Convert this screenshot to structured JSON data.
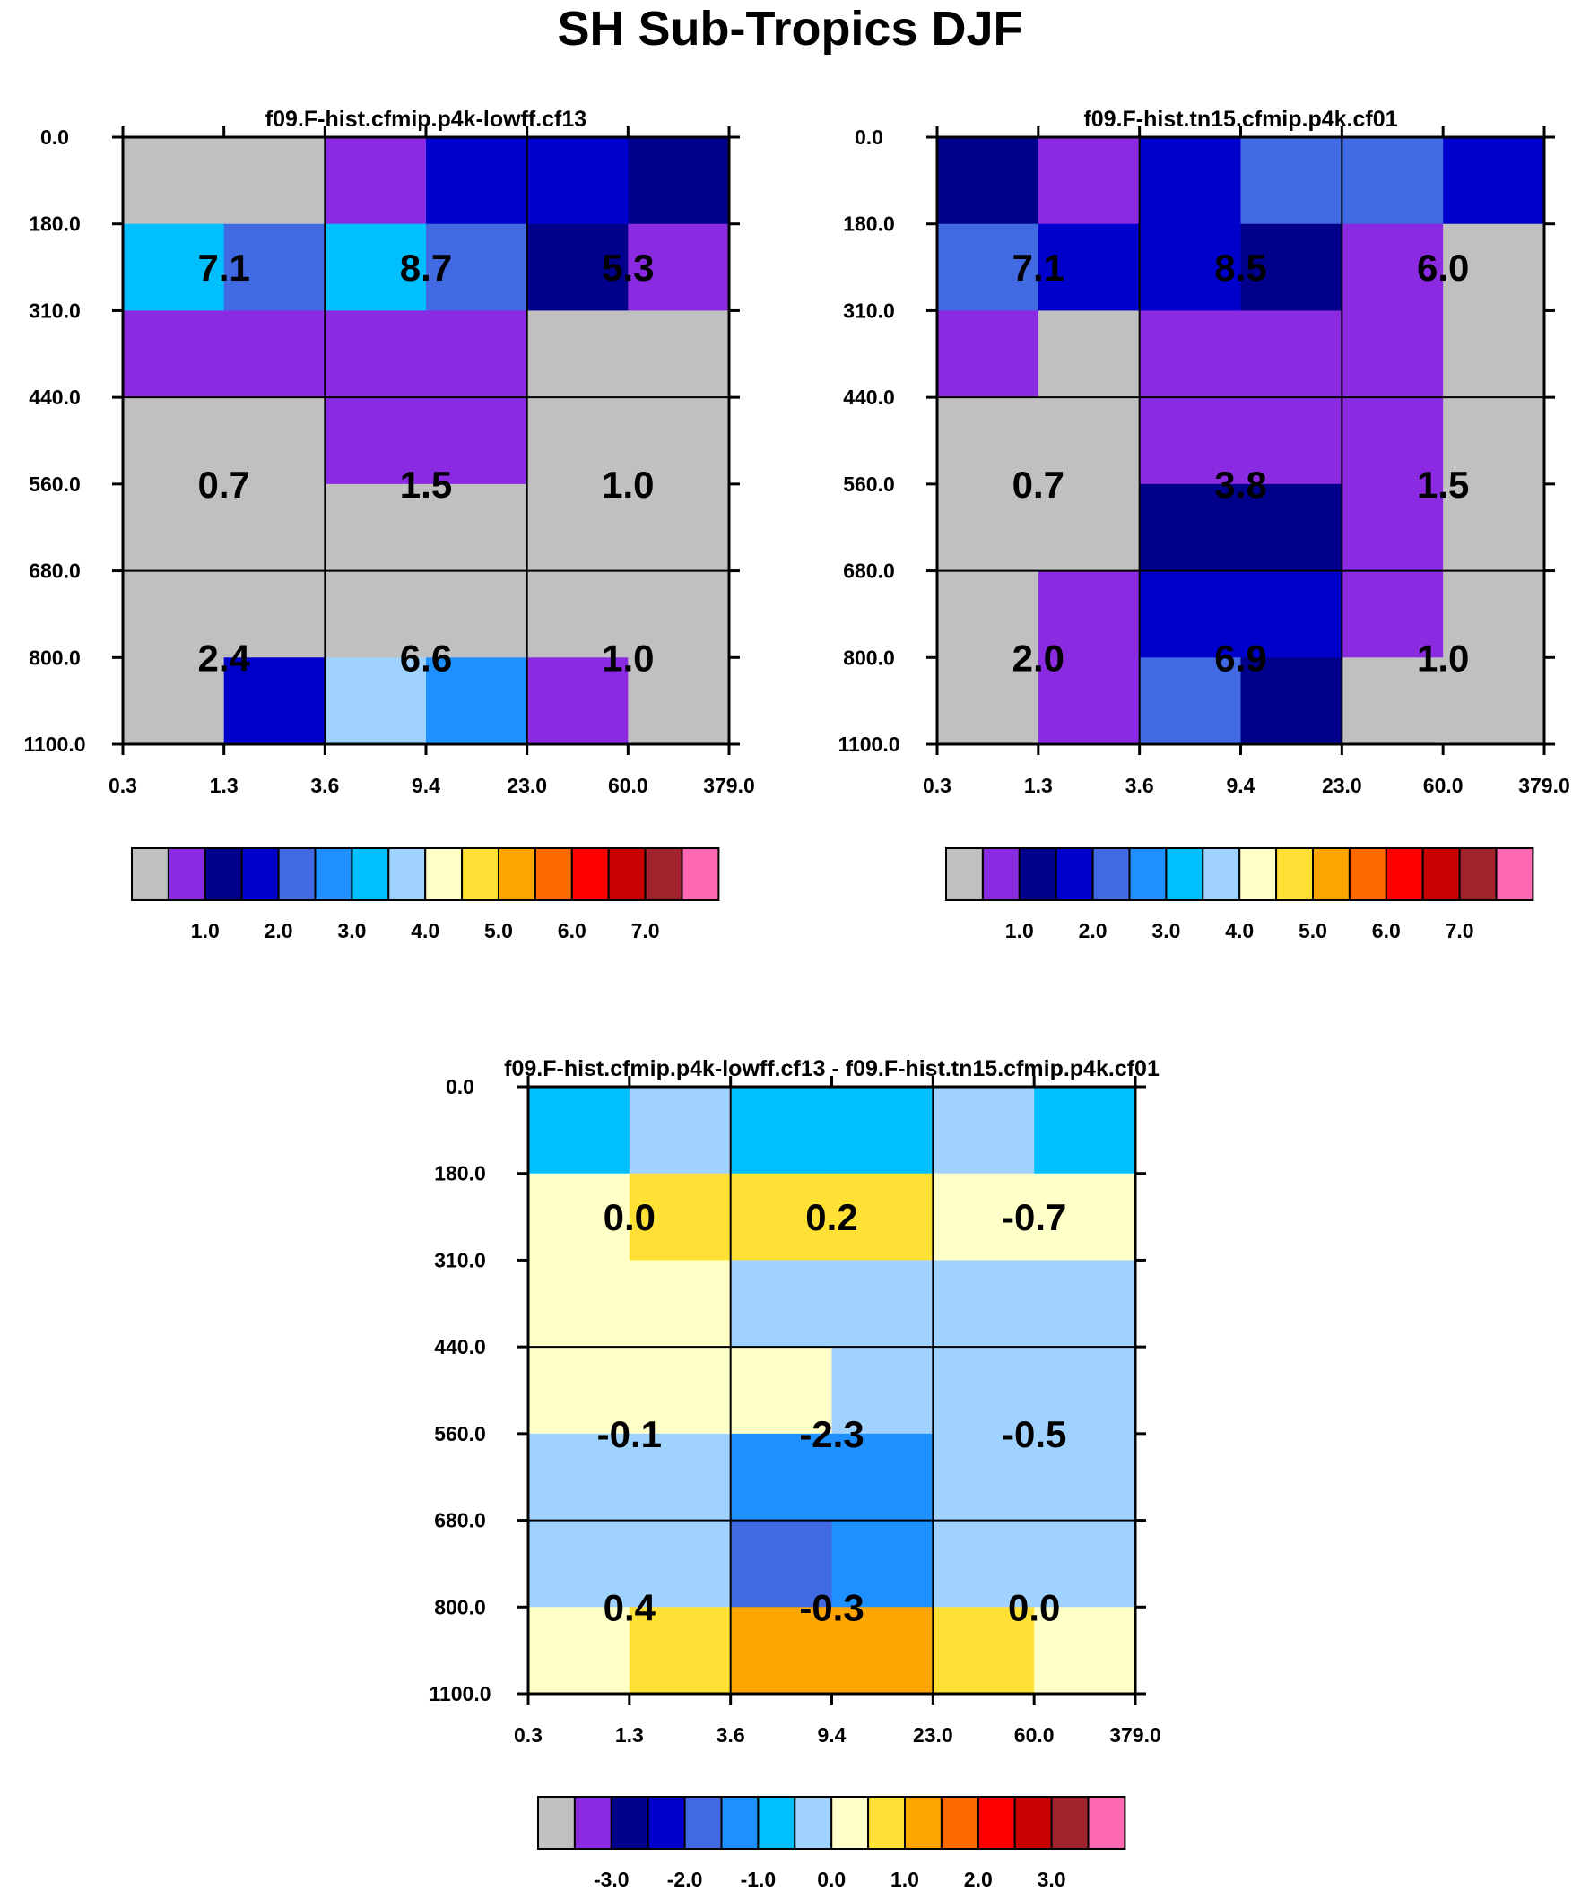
{
  "chart_data": {
    "type": "heatmap",
    "title": "SH Sub-Tropics DJF",
    "x_ticks": [
      "0.3",
      "1.3",
      "3.6",
      "9.4",
      "23.0",
      "60.0",
      "379.0"
    ],
    "y_ticks": [
      "0.0",
      "180.0",
      "310.0",
      "440.0",
      "560.0",
      "680.0",
      "800.0",
      "1100.0"
    ],
    "palette": [
      "#c0c0c0",
      "#8a2be2",
      "#00008b",
      "#0000cd",
      "#4169e1",
      "#1e90ff",
      "#00bfff",
      "#a0d2ff",
      "#ffffc8",
      "#ffe135",
      "#ffa500",
      "#ff6a00",
      "#ff0000",
      "#c80000",
      "#a0232d",
      "#ff69b4"
    ],
    "panels": [
      {
        "name": "panel-cf13",
        "title": "f09.F-hist.cfmip.p4k-lowff.cf13",
        "colorbar_labels": [
          "1.0",
          "2.0",
          "3.0",
          "4.0",
          "5.0",
          "6.0",
          "7.0"
        ],
        "label_values": [
          [
            "7.1",
            "8.7",
            "5.3"
          ],
          [
            "0.7",
            "1.5",
            "1.0"
          ],
          [
            "2.4",
            "6.6",
            "1.0"
          ]
        ],
        "cells": [
          [
            0,
            0,
            1,
            3,
            3,
            2
          ],
          [
            6,
            4,
            6,
            4,
            2,
            1
          ],
          [
            1,
            1,
            1,
            1,
            0,
            0
          ],
          [
            0,
            0,
            1,
            1,
            0,
            0
          ],
          [
            0,
            0,
            0,
            0,
            0,
            0
          ],
          [
            0,
            0,
            0,
            0,
            0,
            0
          ],
          [
            0,
            3,
            7,
            5,
            1,
            0
          ]
        ]
      },
      {
        "name": "panel-cf01",
        "title": "f09.F-hist.tn15.cfmip.p4k.cf01",
        "colorbar_labels": [
          "1.0",
          "2.0",
          "3.0",
          "4.0",
          "5.0",
          "6.0",
          "7.0"
        ],
        "label_values": [
          [
            "7.1",
            "8.5",
            "6.0"
          ],
          [
            "0.7",
            "3.8",
            "1.5"
          ],
          [
            "2.0",
            "6.9",
            "1.0"
          ]
        ],
        "cells": [
          [
            2,
            1,
            3,
            4,
            4,
            3
          ],
          [
            4,
            3,
            3,
            2,
            1,
            0
          ],
          [
            1,
            0,
            1,
            1,
            1,
            0
          ],
          [
            0,
            0,
            1,
            1,
            1,
            0
          ],
          [
            0,
            0,
            2,
            2,
            1,
            0
          ],
          [
            0,
            1,
            3,
            3,
            1,
            0
          ],
          [
            0,
            1,
            4,
            2,
            0,
            0
          ]
        ]
      },
      {
        "name": "panel-diff",
        "title": "f09.F-hist.cfmip.p4k-lowff.cf13 - f09.F-hist.tn15.cfmip.p4k.cf01",
        "colorbar_labels": [
          "-3.0",
          "-2.0",
          "-1.0",
          "0.0",
          "1.0",
          "2.0",
          "3.0"
        ],
        "label_values": [
          [
            "0.0",
            "0.2",
            "-0.7"
          ],
          [
            "-0.1",
            "-2.3",
            "-0.5"
          ],
          [
            "0.4",
            "-0.3",
            "0.0"
          ]
        ],
        "cells": [
          [
            6,
            7,
            6,
            6,
            7,
            6
          ],
          [
            8,
            9,
            9,
            9,
            8,
            8
          ],
          [
            8,
            8,
            7,
            7,
            7,
            7
          ],
          [
            8,
            8,
            8,
            7,
            7,
            7
          ],
          [
            7,
            7,
            5,
            5,
            7,
            7
          ],
          [
            7,
            7,
            4,
            5,
            7,
            7
          ],
          [
            8,
            9,
            10,
            10,
            9,
            8
          ]
        ]
      }
    ]
  }
}
